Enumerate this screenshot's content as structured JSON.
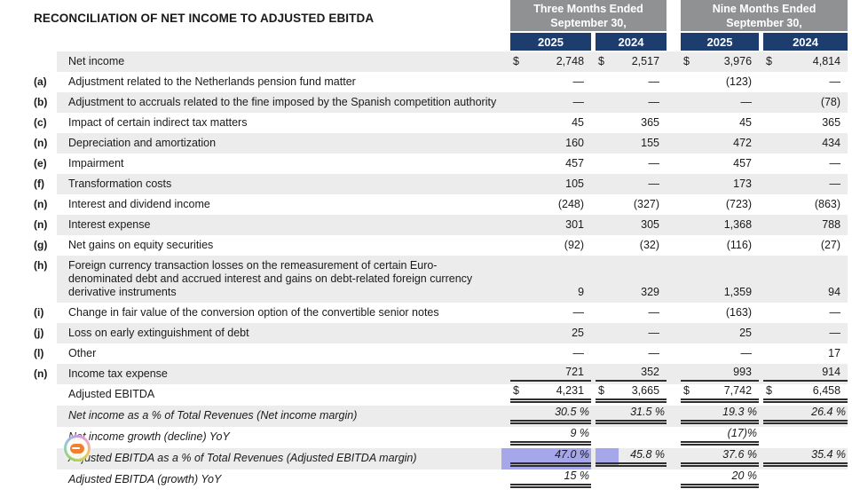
{
  "page": {
    "title": "RECONCILIATION OF NET INCOME TO ADJUSTED EBITDA"
  },
  "colors": {
    "group_header_bg": "#8F9193",
    "year_header_bg": "#1D3D6E",
    "stripe_bg": "#ECECEC",
    "selection_highlight": "#A6A6EA",
    "text": "#1a1a1a",
    "rule_lines": "#2e2e2e"
  },
  "overlay": {
    "sticker_icon": "rainbow-ring-emoji-badge"
  },
  "table": {
    "column_groups": [
      {
        "label": "Three Months Ended September 30,"
      },
      {
        "label": "Nine Months Ended September 30,"
      }
    ],
    "years": [
      "2025",
      "2024",
      "2025",
      "2024"
    ],
    "rows": [
      {
        "note": "",
        "label": "Net income",
        "dollar": true,
        "shaded": true,
        "values": [
          "2,748",
          "2,517",
          "3,976",
          "4,814"
        ]
      },
      {
        "note": "(a)",
        "label": "Adjustment related to the Netherlands pension fund matter",
        "values": [
          "—",
          "—",
          "(123)",
          "—"
        ]
      },
      {
        "note": "(b)",
        "label": "Adjustment to accruals related to the fine imposed by the Spanish competition authority",
        "shaded": true,
        "values": [
          "—",
          "—",
          "—",
          "(78)"
        ]
      },
      {
        "note": "(c)",
        "label": "Impact of certain indirect tax matters",
        "values": [
          "45",
          "365",
          "45",
          "365"
        ]
      },
      {
        "note": "(n)",
        "label": "Depreciation and amortization",
        "shaded": true,
        "values": [
          "160",
          "155",
          "472",
          "434"
        ]
      },
      {
        "note": "(e)",
        "label": "Impairment",
        "values": [
          "457",
          "—",
          "457",
          "—"
        ]
      },
      {
        "note": "(f)",
        "label": "Transformation costs",
        "shaded": true,
        "values": [
          "105",
          "—",
          "173",
          "—"
        ]
      },
      {
        "note": "(n)",
        "label": "Interest and dividend income",
        "values": [
          "(248)",
          "(327)",
          "(723)",
          "(863)"
        ]
      },
      {
        "note": "(n)",
        "label": "Interest expense",
        "shaded": true,
        "values": [
          "301",
          "305",
          "1,368",
          "788"
        ]
      },
      {
        "note": "(g)",
        "label": "Net gains on equity securities",
        "values": [
          "(92)",
          "(32)",
          "(116)",
          "(27)"
        ]
      },
      {
        "note": "(h)",
        "label": "Foreign currency transaction losses on the remeasurement of certain Euro-denominated debt and accrued interest and gains on debt-related foreign currency derivative instruments",
        "shaded": true,
        "values": [
          "9",
          "329",
          "1,359",
          "94"
        ]
      },
      {
        "note": "(i)",
        "label": "Change in fair value of the conversion option of the convertible senior notes",
        "values": [
          "—",
          "—",
          "(163)",
          "—"
        ]
      },
      {
        "note": "(j)",
        "label": "Loss on early extinguishment of debt",
        "shaded": true,
        "values": [
          "25",
          "—",
          "25",
          "—"
        ]
      },
      {
        "note": "(l)",
        "label": "Other",
        "values": [
          "—",
          "—",
          "—",
          "17"
        ]
      },
      {
        "note": "(n)",
        "label": "Income tax expense",
        "shaded": true,
        "underline": "single",
        "values": [
          "721",
          "352",
          "993",
          "914"
        ]
      },
      {
        "note": "",
        "label": "Adjusted EBITDA",
        "dollar": true,
        "underline": "double",
        "values": [
          "4,231",
          "3,665",
          "7,742",
          "6,458"
        ]
      },
      {
        "note": "",
        "label": "Net income as a % of Total Revenues (Net income margin)",
        "italic": true,
        "shaded": true,
        "underline": "double",
        "values": [
          "30.5 %",
          "31.5 %",
          "19.3 %",
          "26.4 %"
        ]
      },
      {
        "note": "",
        "label": "Net income growth (decline) YoY",
        "italic": true,
        "underline": "double",
        "values": [
          "9 %",
          "",
          "(17)%",
          ""
        ]
      },
      {
        "note": "",
        "label": "Adjusted EBITDA as a % of Total Revenues (Adjusted EBITDA margin)",
        "italic": true,
        "shaded": true,
        "underline": "double",
        "highlighted": true,
        "values": [
          "47.0 %",
          "45.8 %",
          "37.6 %",
          "35.4 %"
        ]
      },
      {
        "note": "",
        "label": "Adjusted EBITDA (growth) YoY",
        "italic": true,
        "underline": "double",
        "partial": true,
        "values": [
          "15 %",
          "",
          "20 %",
          ""
        ]
      }
    ]
  }
}
